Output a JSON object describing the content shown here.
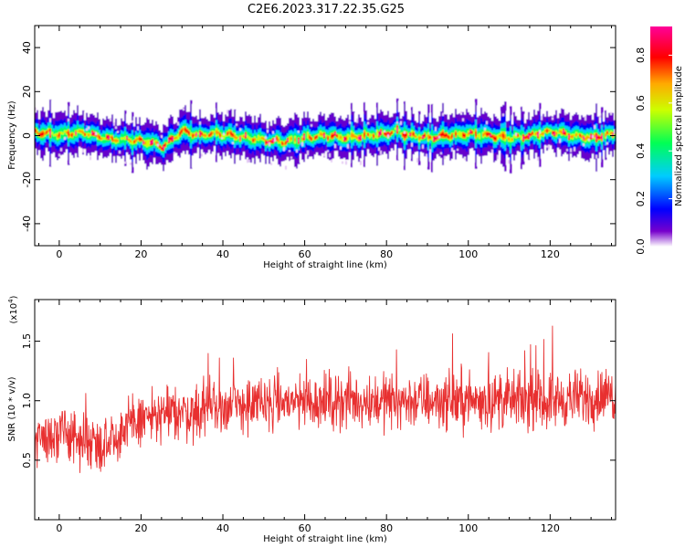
{
  "title": "C2E6.2023.317.22.35.G25",
  "chart_data": [
    {
      "type": "heatmap",
      "xlabel": "Height of straight line (km)",
      "ylabel": "Frequency (Hz)",
      "xlim": [
        -6,
        136
      ],
      "ylim": [
        -50,
        50
      ],
      "xticks": [
        0,
        20,
        40,
        60,
        80,
        100,
        120
      ],
      "yticks": [
        -40,
        -20,
        0,
        20,
        40
      ],
      "colorbar": {
        "label": "Normalized spectral amplitude",
        "range": [
          0.0,
          0.92
        ],
        "ticks": [
          "0.0",
          "0.2",
          "0.4",
          "0.6",
          "0.8"
        ],
        "colors": [
          "#ffffff",
          "#6600cc",
          "#0000ff",
          "#00ccff",
          "#00ff66",
          "#ccff00",
          "#ff9900",
          "#ff0000",
          "#ff0099"
        ]
      },
      "ridge_center": [
        [
          -6,
          1.5
        ],
        [
          0,
          0.5
        ],
        [
          6,
          1.5
        ],
        [
          12,
          -1.5
        ],
        [
          18,
          -2
        ],
        [
          22,
          -3
        ],
        [
          25,
          -5
        ],
        [
          28,
          -1
        ],
        [
          30,
          2
        ],
        [
          34,
          0
        ],
        [
          38,
          1
        ],
        [
          42,
          0
        ],
        [
          46,
          -1
        ],
        [
          50,
          -2
        ],
        [
          55,
          -3
        ],
        [
          60,
          -1
        ],
        [
          65,
          0
        ],
        [
          70,
          -1
        ],
        [
          75,
          0
        ],
        [
          80,
          1
        ],
        [
          82,
          2
        ],
        [
          86,
          0
        ],
        [
          90,
          -1
        ],
        [
          95,
          0
        ],
        [
          100,
          1
        ],
        [
          105,
          0
        ],
        [
          110,
          -1
        ],
        [
          115,
          0
        ],
        [
          120,
          2
        ],
        [
          125,
          0
        ],
        [
          130,
          -1
        ],
        [
          136,
          1
        ]
      ]
    },
    {
      "type": "line",
      "xlabel": "Height of straight line (km)",
      "ylabel": "SNR (10 * v/v)",
      "yscale_label": "(x10^4)",
      "yscale_base": "x10",
      "yscale_exp": "4",
      "xlim": [
        -6,
        136
      ],
      "ylim": [
        0.0,
        1.85
      ],
      "xticks": [
        0,
        20,
        40,
        60,
        80,
        100,
        120
      ],
      "yticks": [
        "0.5",
        "1.0",
        "1.5"
      ],
      "color": "#e83030",
      "envelope": [
        [
          -6,
          0.7
        ],
        [
          0,
          0.7
        ],
        [
          10,
          0.65
        ],
        [
          16,
          0.75
        ],
        [
          20,
          0.85
        ],
        [
          30,
          0.9
        ],
        [
          40,
          0.95
        ],
        [
          50,
          0.97
        ],
        [
          60,
          1.0
        ],
        [
          80,
          1.0
        ],
        [
          100,
          1.0
        ],
        [
          120,
          1.0
        ],
        [
          136,
          1.05
        ]
      ]
    }
  ]
}
